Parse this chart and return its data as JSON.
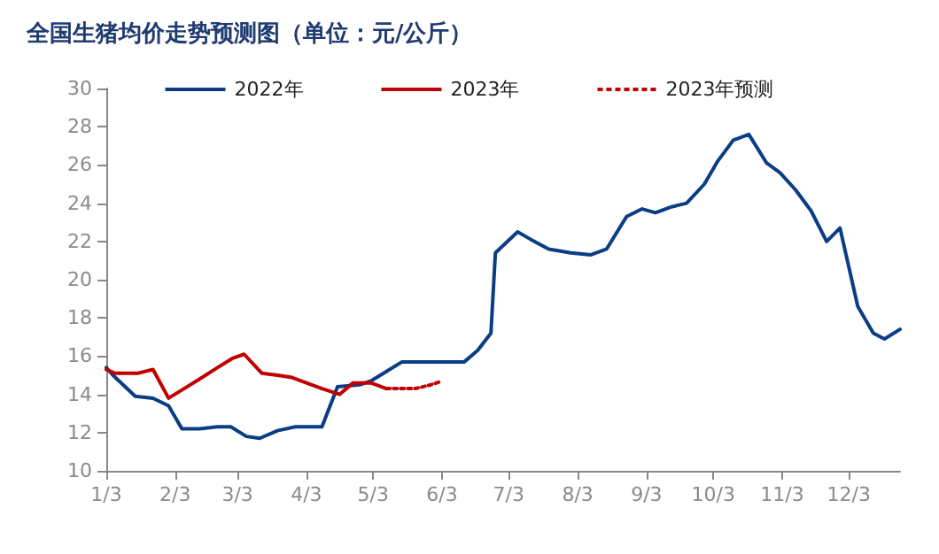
{
  "chart_data": {
    "type": "line",
    "title": "全国生猪均价走势预测图（单位：元/公斤）",
    "legend": "top",
    "grid": false,
    "marker": "none",
    "line_style": "solid",
    "xlim": [
      "--01-03",
      "--12-26"
    ],
    "xticks": [
      {
        "value": "--01-03",
        "label": "1/3"
      },
      {
        "value": "--02-03",
        "label": "2/3"
      },
      {
        "value": "--03-03",
        "label": "3/3"
      },
      {
        "value": "--04-03",
        "label": "4/3"
      },
      {
        "value": "--05-03",
        "label": "5/3"
      },
      {
        "value": "--06-03",
        "label": "6/3"
      },
      {
        "value": "--07-03",
        "label": "7/3"
      },
      {
        "value": "--08-03",
        "label": "8/3"
      },
      {
        "value": "--09-03",
        "label": "9/3"
      },
      {
        "value": "--10-03",
        "label": "10/3"
      },
      {
        "value": "--11-03",
        "label": "11/3"
      },
      {
        "value": "--12-03",
        "label": "12/3"
      }
    ],
    "ylim": [
      10,
      30
    ],
    "yticks": [
      10,
      12,
      14,
      16,
      18,
      20,
      22,
      24,
      26,
      28,
      30
    ],
    "series": [
      {
        "name": "2022年",
        "color": "#0b3d86",
        "x": [
          "--01-03",
          "--01-06",
          "--01-16",
          "--01-24",
          "--01-31",
          "--02-06",
          "--02-14",
          "--02-22",
          "--02-28",
          "--03-07",
          "--03-13",
          "--03-21",
          "--03-29",
          "--04-10",
          "--04-17",
          "--04-27",
          "--05-02",
          "--05-09",
          "--05-16",
          "--06-13",
          "--06-19",
          "--06-25",
          "--06-27",
          "--07-07",
          "--07-13",
          "--07-21",
          "--07-31",
          "--08-09",
          "--08-16",
          "--08-25",
          "--09-01",
          "--09-07",
          "--09-14",
          "--09-21",
          "--09-29",
          "--10-05",
          "--10-12",
          "--10-19",
          "--10-27",
          "--11-02",
          "--11-09",
          "--11-16",
          "--11-23",
          "--11-29",
          "--12-07",
          "--12-14",
          "--12-19",
          "--12-26"
        ],
        "values": [
          15.4,
          15.0,
          13.9,
          13.8,
          13.4,
          12.2,
          12.2,
          12.3,
          12.3,
          11.8,
          11.7,
          12.1,
          12.3,
          12.3,
          14.4,
          14.5,
          14.7,
          15.2,
          15.7,
          15.7,
          16.3,
          17.2,
          21.4,
          22.5,
          22.1,
          21.6,
          21.4,
          21.3,
          21.6,
          23.3,
          23.7,
          23.5,
          23.8,
          24.0,
          25.0,
          26.2,
          27.3,
          27.6,
          26.1,
          25.6,
          24.7,
          23.6,
          22.0,
          22.7,
          18.6,
          17.2,
          16.9,
          17.4
        ]
      },
      {
        "name": "2023年",
        "color": "#c00000",
        "x": [
          "--01-03",
          "--01-07",
          "--01-17",
          "--01-24",
          "--01-31",
          "--02-07",
          "--02-14",
          "--02-22",
          "--03-01",
          "--03-06",
          "--03-14",
          "--03-21",
          "--03-27",
          "--04-03",
          "--04-10",
          "--04-18",
          "--04-24",
          "--05-02",
          "--05-09"
        ],
        "values": [
          15.3,
          15.1,
          15.1,
          15.3,
          13.8,
          14.3,
          14.8,
          15.4,
          15.9,
          16.1,
          15.1,
          15.0,
          14.9,
          14.6,
          14.3,
          14.0,
          14.6,
          14.6,
          14.3
        ]
      },
      {
        "name": "2023年预测",
        "color": "#c00000",
        "line_style": "dotted",
        "x": [
          "--05-09",
          "--05-16",
          "--05-22",
          "--05-29",
          "--06-03"
        ],
        "values": [
          14.3,
          14.3,
          14.3,
          14.5,
          14.7
        ]
      }
    ]
  }
}
